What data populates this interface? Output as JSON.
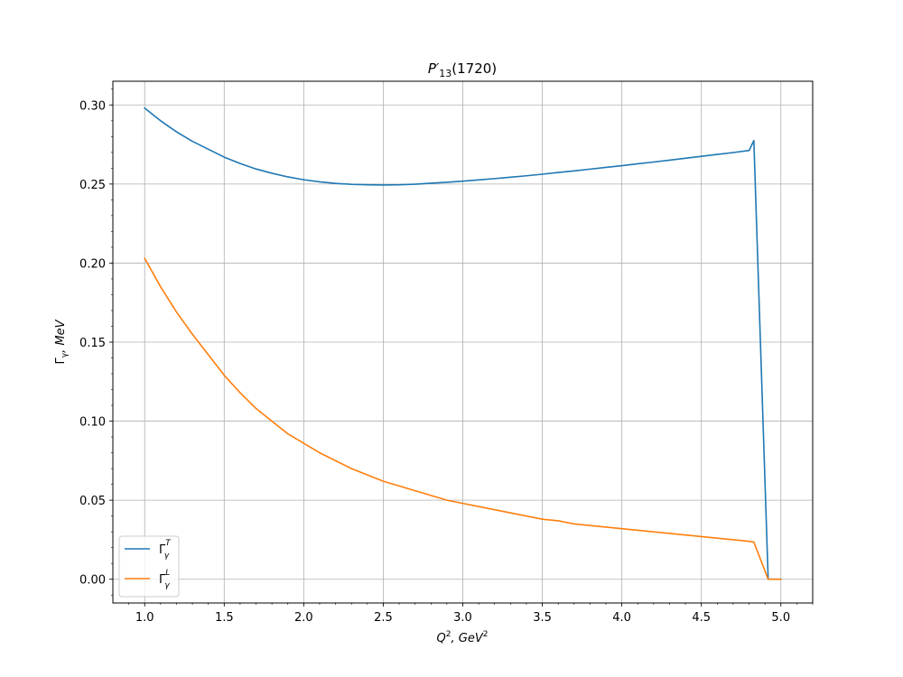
{
  "chart_data": {
    "type": "line",
    "title_main": "P′",
    "title_sub": "13",
    "title_rest": "(1720)",
    "xlabel_main": "Q",
    "xlabel_sup1": "2",
    "xlabel_mid": ", GeV",
    "xlabel_sup2": "2",
    "ylabel_main": "Γ",
    "ylabel_sub": "γ",
    "ylabel_rest": ", MeV",
    "xlim": [
      0.8,
      5.2
    ],
    "ylim": [
      -0.015,
      0.315
    ],
    "xticks": [
      1.0,
      1.5,
      2.0,
      2.5,
      3.0,
      3.5,
      4.0,
      4.5,
      5.0
    ],
    "xtick_labels": [
      "1.0",
      "1.5",
      "2.0",
      "2.5",
      "3.0",
      "3.5",
      "4.0",
      "4.5",
      "5.0"
    ],
    "yticks": [
      0.0,
      0.05,
      0.1,
      0.15,
      0.2,
      0.25,
      0.3
    ],
    "ytick_labels": [
      "0.00",
      "0.05",
      "0.10",
      "0.15",
      "0.20",
      "0.25",
      "0.30"
    ],
    "grid": true,
    "legend_position": "lower-left",
    "series": [
      {
        "name_main": "Γ",
        "name_sub": "γ",
        "name_sup": "T",
        "color": "#1f77b4",
        "x": [
          1.0,
          1.1,
          1.2,
          1.3,
          1.4,
          1.5,
          1.6,
          1.7,
          1.8,
          1.9,
          2.0,
          2.1,
          2.2,
          2.3,
          2.4,
          2.5,
          2.6,
          2.7,
          2.8,
          2.9,
          3.0,
          3.1,
          3.2,
          3.3,
          3.4,
          3.5,
          3.6,
          3.7,
          3.8,
          3.9,
          4.0,
          4.1,
          4.2,
          4.3,
          4.4,
          4.5,
          4.6,
          4.7,
          4.8,
          4.83,
          4.92,
          5.0
        ],
        "y": [
          0.298,
          0.29,
          0.283,
          0.277,
          0.272,
          0.267,
          0.263,
          0.2595,
          0.2568,
          0.2545,
          0.2527,
          0.2514,
          0.2504,
          0.2498,
          0.2495,
          0.2494,
          0.2495,
          0.2499,
          0.2505,
          0.2511,
          0.2518,
          0.2526,
          0.2534,
          0.2543,
          0.2552,
          0.2562,
          0.2573,
          0.2583,
          0.2594,
          0.2605,
          0.2616,
          0.2628,
          0.2639,
          0.2651,
          0.2663,
          0.2675,
          0.2687,
          0.2699,
          0.2712,
          0.2775,
          0.0,
          0.0
        ]
      },
      {
        "name_main": "Γ",
        "name_sub": "γ",
        "name_sup": "L",
        "color": "#ff7f0e",
        "x": [
          1.0,
          1.1,
          1.2,
          1.3,
          1.4,
          1.5,
          1.6,
          1.7,
          1.8,
          1.9,
          2.0,
          2.1,
          2.2,
          2.3,
          2.4,
          2.5,
          2.6,
          2.7,
          2.8,
          2.9,
          3.0,
          3.1,
          3.2,
          3.3,
          3.4,
          3.5,
          3.6,
          3.7,
          3.8,
          3.9,
          4.0,
          4.1,
          4.2,
          4.3,
          4.4,
          4.5,
          4.6,
          4.7,
          4.8,
          4.83,
          4.92,
          5.0
        ],
        "y": [
          0.203,
          0.185,
          0.169,
          0.155,
          0.142,
          0.129,
          0.118,
          0.108,
          0.1,
          0.092,
          0.086,
          0.08,
          0.075,
          0.07,
          0.066,
          0.062,
          0.059,
          0.056,
          0.053,
          0.05,
          0.048,
          0.046,
          0.044,
          0.042,
          0.04,
          0.038,
          0.037,
          0.035,
          0.034,
          0.033,
          0.032,
          0.031,
          0.03,
          0.029,
          0.028,
          0.027,
          0.026,
          0.025,
          0.024,
          0.0235,
          0.0,
          0.0
        ]
      }
    ]
  }
}
